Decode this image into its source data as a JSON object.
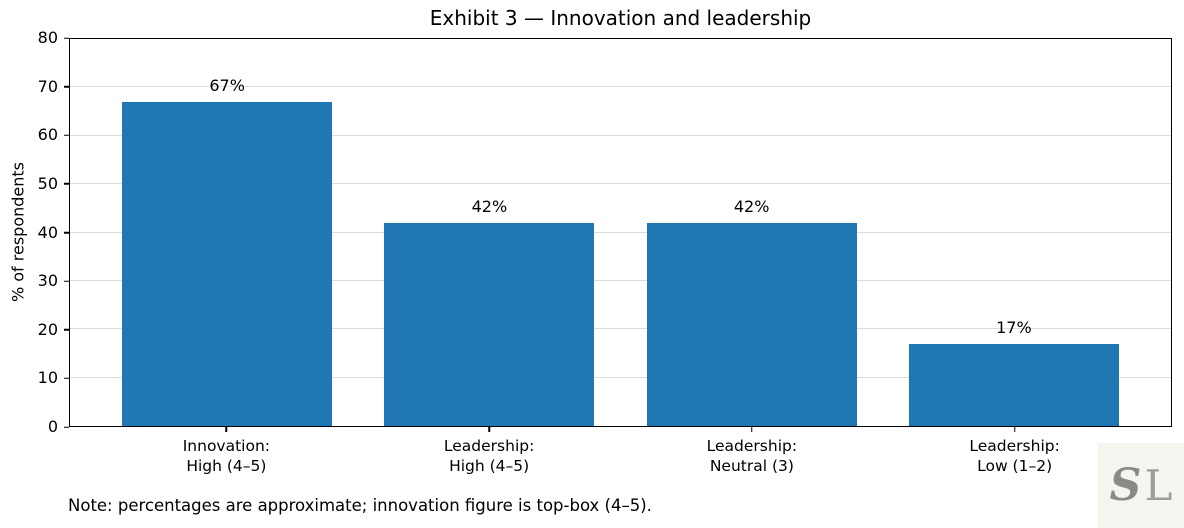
{
  "title": "Exhibit 3 — Innovation and leadership",
  "note": "Note: percentages are approximate; innovation figure is top-box (4–5).",
  "logo": {
    "letter_s": "S",
    "letter_l": "L"
  },
  "chart_data": {
    "type": "bar",
    "title": "Exhibit 3 — Innovation and leadership",
    "xlabel": "",
    "ylabel": "% of respondents",
    "ylim": [
      0,
      80
    ],
    "yticks": [
      0,
      10,
      20,
      30,
      40,
      50,
      60,
      70,
      80
    ],
    "grid": "horizontal",
    "legend": "none",
    "bar_color": "#1f77b4",
    "categories": [
      "Innovation: High (4–5)",
      "Leadership: High (4–5)",
      "Leadership: Neutral (3)",
      "Leadership: Low (1–2)"
    ],
    "category_lines": [
      {
        "line1": "Innovation:",
        "line2": "High (4–5)"
      },
      {
        "line1": "Leadership:",
        "line2": "High (4–5)"
      },
      {
        "line1": "Leadership:",
        "line2": "Neutral (3)"
      },
      {
        "line1": "Leadership:",
        "line2": "Low (1–2)"
      }
    ],
    "values": [
      67,
      42,
      42,
      17
    ],
    "value_labels": [
      "67%",
      "42%",
      "42%",
      "17%"
    ]
  }
}
